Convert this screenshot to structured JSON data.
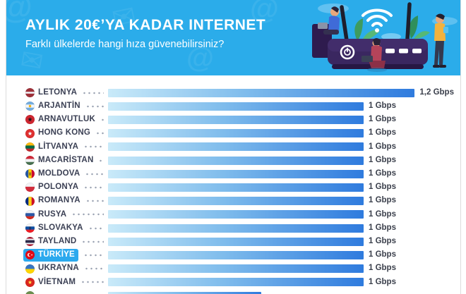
{
  "header": {
    "title": "AYLIK 20€’YA KADAR INTERNET",
    "subtitle": "Farklı ülkelerde hangi hıza güvenebilirsiniz?",
    "background_color": "#2BACEA",
    "text_color": "#FFFFFF",
    "watermark_icons": [
      "at-sign-icon",
      "envelope-icon",
      "wifi-icon"
    ],
    "illustration": "wifi-router-with-three-people-and-plants"
  },
  "chart_data": {
    "type": "bar",
    "orientation": "horizontal",
    "unit": "Gbps",
    "xlim": [
      0,
      1.32
    ],
    "grid": false,
    "legend": "none",
    "bar_gradient": [
      "#C9EAF9",
      "#2F7BDE"
    ],
    "label_color": "#3B4054",
    "value_color": "#3A3F4B",
    "highlight_color": "#2BA9EE",
    "rows": [
      {
        "label": "LETONYA",
        "flag": "latvia",
        "value_gbps": 1.2,
        "value_label": "1,2 Gbps",
        "highlight": false
      },
      {
        "label": "ARJANTİN",
        "flag": "argentina",
        "value_gbps": 1.0,
        "value_label": "1 Gbps",
        "highlight": false
      },
      {
        "label": "ARNAVUTLUK",
        "flag": "albania",
        "value_gbps": 1.0,
        "value_label": "1 Gbps",
        "highlight": false
      },
      {
        "label": "HONG KONG",
        "flag": "hongkong",
        "value_gbps": 1.0,
        "value_label": "1 Gbps",
        "highlight": false
      },
      {
        "label": "LİTVANYA",
        "flag": "lithuania",
        "value_gbps": 1.0,
        "value_label": "1 Gbps",
        "highlight": false
      },
      {
        "label": "MACARİSTAN",
        "flag": "hungary",
        "value_gbps": 1.0,
        "value_label": "1 Gbps",
        "highlight": false
      },
      {
        "label": "MOLDOVA",
        "flag": "moldova",
        "value_gbps": 1.0,
        "value_label": "1 Gbps",
        "highlight": false
      },
      {
        "label": "POLONYA",
        "flag": "poland",
        "value_gbps": 1.0,
        "value_label": "1 Gbps",
        "highlight": false
      },
      {
        "label": "ROMANYA",
        "flag": "romania",
        "value_gbps": 1.0,
        "value_label": "1 Gbps",
        "highlight": false
      },
      {
        "label": "RUSYA",
        "flag": "russia",
        "value_gbps": 1.0,
        "value_label": "1 Gbps",
        "highlight": false
      },
      {
        "label": "SLOVAKYA",
        "flag": "slovakia",
        "value_gbps": 1.0,
        "value_label": "1 Gbps",
        "highlight": false
      },
      {
        "label": "TAYLAND",
        "flag": "thailand",
        "value_gbps": 1.0,
        "value_label": "1 Gbps",
        "highlight": false
      },
      {
        "label": "TÜRKİYE",
        "flag": "turkey",
        "value_gbps": 1.0,
        "value_label": "1 Gbps",
        "highlight": true
      },
      {
        "label": "UKRAYNA",
        "flag": "ukraine",
        "value_gbps": 1.0,
        "value_label": "1 Gbps",
        "highlight": false
      },
      {
        "label": "VİETNAM",
        "flag": "vietnam",
        "value_gbps": 1.0,
        "value_label": "1 Gbps",
        "highlight": false
      },
      {
        "label": "",
        "flag": "cutoff",
        "value_gbps": 0.6,
        "value_label": "",
        "highlight": false,
        "partially_visible": true
      }
    ]
  },
  "flags": {
    "latvia": {
      "type": "h",
      "stripes": [
        [
          "#9E3039",
          40
        ],
        [
          "#EDEFF3",
          20
        ],
        [
          "#9E3039",
          40
        ]
      ]
    },
    "argentina": {
      "type": "h",
      "stripes": [
        [
          "#74ACDF",
          33
        ],
        [
          "#F5F7F9",
          34
        ],
        [
          "#74ACDF",
          33
        ]
      ],
      "emblem": "sun"
    },
    "albania": {
      "type": "s",
      "color": "#CF2630",
      "emblem": "eagle"
    },
    "hongkong": {
      "type": "s",
      "color": "#DE2F2F",
      "emblem": "flower"
    },
    "lithuania": {
      "type": "h",
      "stripes": [
        [
          "#FDB913",
          34
        ],
        [
          "#006A44",
          33
        ],
        [
          "#C1272D",
          33
        ]
      ]
    },
    "hungary": {
      "type": "h",
      "stripes": [
        [
          "#CE2939",
          34
        ],
        [
          "#F2F3F6",
          33
        ],
        [
          "#477050",
          33
        ]
      ]
    },
    "moldova": {
      "type": "v",
      "stripes": [
        [
          "#2456A4",
          33
        ],
        [
          "#FFD200",
          34
        ],
        [
          "#CC092F",
          33
        ]
      ],
      "emblem": "crest"
    },
    "poland": {
      "type": "h",
      "stripes": [
        [
          "#F2F3F6",
          45
        ],
        [
          "#D22C3C",
          55
        ]
      ]
    },
    "romania": {
      "type": "v",
      "stripes": [
        [
          "#002B7F",
          33
        ],
        [
          "#FCD116",
          34
        ],
        [
          "#CE1126",
          33
        ]
      ]
    },
    "russia": {
      "type": "h",
      "stripes": [
        [
          "#F2F3F6",
          33
        ],
        [
          "#2B57A5",
          34
        ],
        [
          "#D52B1E",
          33
        ]
      ]
    },
    "slovakia": {
      "type": "h",
      "stripes": [
        [
          "#F2F3F6",
          33
        ],
        [
          "#0B4EA2",
          34
        ],
        [
          "#EE1C25",
          33
        ]
      ],
      "emblem": "crest"
    },
    "thailand": {
      "type": "h",
      "stripes": [
        [
          "#A51931",
          20
        ],
        [
          "#F4F5F8",
          15
        ],
        [
          "#2D2A4A",
          30
        ],
        [
          "#F4F5F8",
          15
        ],
        [
          "#A51931",
          20
        ]
      ]
    },
    "turkey": {
      "type": "s",
      "color": "#E30A17",
      "emblem": "crescent-star"
    },
    "ukraine": {
      "type": "h",
      "stripes": [
        [
          "#3775C1",
          50
        ],
        [
          "#FFD500",
          50
        ]
      ]
    },
    "vietnam": {
      "type": "s",
      "color": "#DA251D",
      "emblem": "star"
    },
    "cutoff": {
      "type": "h",
      "stripes": [
        [
          "#6B8E4E",
          50
        ],
        [
          "#44573A",
          50
        ]
      ]
    }
  }
}
